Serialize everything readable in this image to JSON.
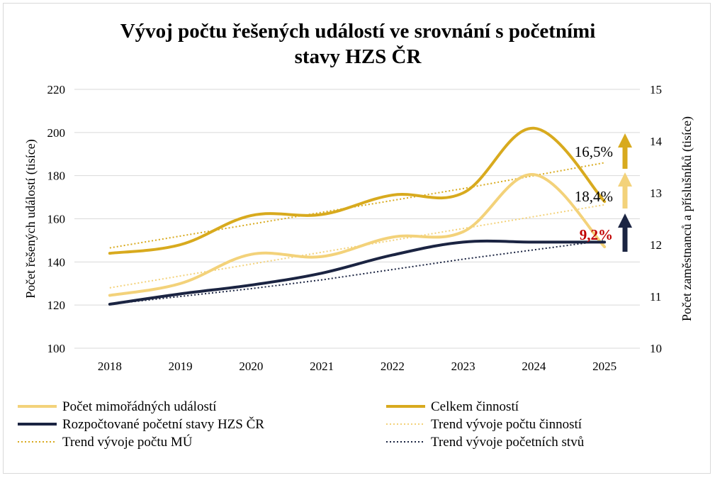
{
  "chart_data": {
    "type": "line",
    "title": "Vývoj počtu řešených událostí ve srovnání s početními stavy HZS ČR",
    "title_lines": [
      "Vývoj počtu řešených událostí ve srovnání s početními",
      "stavy HZS ČR"
    ],
    "categories": [
      "2018",
      "2019",
      "2020",
      "2021",
      "2022",
      "2023",
      "2024",
      "2025"
    ],
    "ylabel": "Počet řešených událostí (tisíce)",
    "y2label": "Počet zaměstnanců a příslušníků (tisíce)",
    "ylim": [
      100,
      220
    ],
    "yticks": [
      "100",
      "120",
      "140",
      "160",
      "180",
      "200",
      "220"
    ],
    "y2lim": [
      10,
      15
    ],
    "y2ticks": [
      "10",
      "11",
      "12",
      "13",
      "14",
      "15"
    ],
    "grid": true,
    "legend_position": "bottom",
    "series": [
      {
        "name": "Počet mimořádných událostí",
        "axis": "left",
        "style": "solid",
        "color": "#f3d27a",
        "width": 4,
        "values": [
          124.5,
          130,
          143.5,
          142.5,
          151.5,
          154,
          180.5,
          147
        ]
      },
      {
        "name": "Celkem činností",
        "axis": "left",
        "style": "solid",
        "color": "#d8aa1e",
        "width": 4,
        "values": [
          144,
          148,
          161.5,
          162,
          171,
          172,
          202,
          168
        ]
      },
      {
        "name": "Rozpočtované početní stavy HZS ČR",
        "axis": "right",
        "style": "solid",
        "color": "#1b2442",
        "width": 4,
        "values": [
          10.85,
          11.05,
          11.22,
          11.45,
          11.8,
          12.05,
          12.05,
          12.05
        ]
      },
      {
        "name": "Trend vývoje počtu činností",
        "axis": "left",
        "style": "dotted",
        "color": "#f3d27a",
        "width": 2,
        "values": [
          128,
          133.5,
          139,
          144.5,
          150,
          155.5,
          161,
          166.5
        ]
      },
      {
        "name": "Trend vývoje počtu MÚ",
        "axis": "left",
        "style": "dotted",
        "color": "#d8aa1e",
        "width": 2,
        "values": [
          146.5,
          152,
          157.5,
          163,
          168.5,
          174,
          180,
          186
        ]
      },
      {
        "name": "Trend vývoje početních stvů",
        "axis": "right",
        "style": "dotted",
        "color": "#1b2442",
        "width": 2,
        "values": [
          10.85,
          11.0,
          11.15,
          11.32,
          11.52,
          11.72,
          11.9,
          12.08
        ]
      }
    ],
    "annotations": [
      {
        "text": "16,5%",
        "color": "#000000",
        "bold": false,
        "arrow_color": "#d8aa1e"
      },
      {
        "text": "18,4%",
        "color": "#000000",
        "bold": false,
        "arrow_color": "#f3d27a"
      },
      {
        "text": "9,2%",
        "color": "#c00000",
        "bold": true,
        "arrow_color": "#1b2442"
      }
    ]
  }
}
